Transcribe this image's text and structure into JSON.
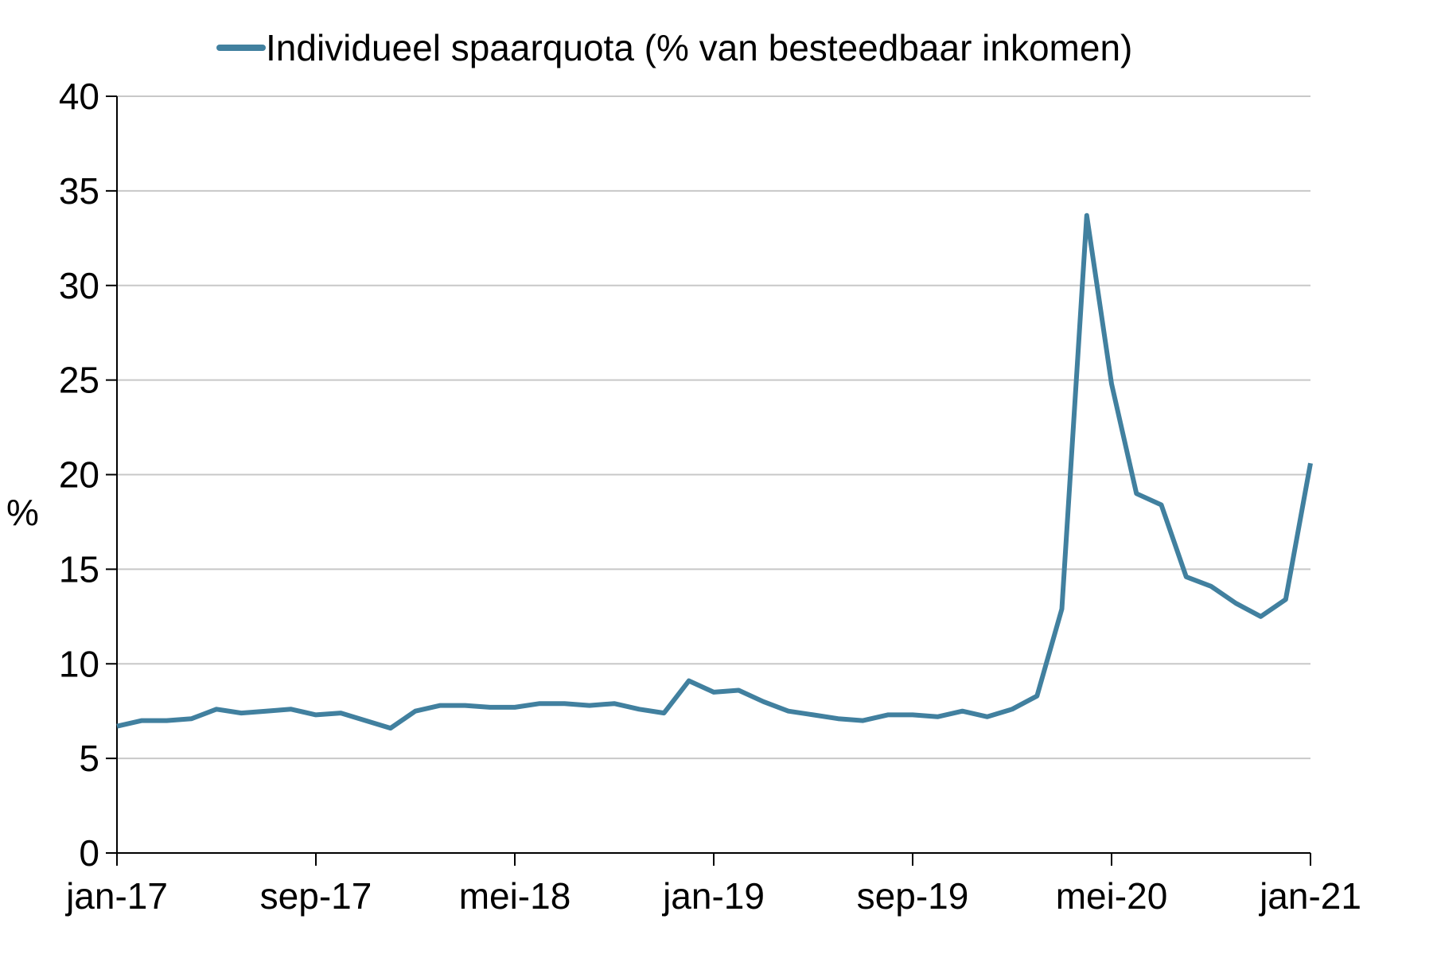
{
  "chart_data": {
    "type": "line",
    "ylabel": "%",
    "ylim": [
      0,
      40
    ],
    "y_ticks": [
      0,
      5,
      10,
      15,
      20,
      25,
      30,
      35,
      40
    ],
    "x_tick_labels": [
      "jan-17",
      "sep-17",
      "mei-18",
      "jan-19",
      "sep-19",
      "mei-20",
      "jan-21"
    ],
    "grid": "horizontal",
    "legend_position": "top",
    "series": [
      {
        "name": "Individueel spaarquota (% van besteedbaar inkomen)",
        "color": "#41809F",
        "x": [
          "jan-17",
          "feb-17",
          "mrt-17",
          "apr-17",
          "mei-17",
          "jun-17",
          "jul-17",
          "aug-17",
          "sep-17",
          "okt-17",
          "nov-17",
          "dec-17",
          "jan-18",
          "feb-18",
          "mrt-18",
          "apr-18",
          "mei-18",
          "jun-18",
          "jul-18",
          "aug-18",
          "sep-18",
          "okt-18",
          "nov-18",
          "dec-18",
          "jan-19",
          "feb-19",
          "mrt-19",
          "apr-19",
          "mei-19",
          "jun-19",
          "jul-19",
          "aug-19",
          "sep-19",
          "okt-19",
          "nov-19",
          "dec-19",
          "jan-20",
          "feb-20",
          "mrt-20",
          "apr-20",
          "mei-20",
          "jun-20",
          "jul-20",
          "aug-20",
          "sep-20",
          "okt-20",
          "nov-20",
          "dec-20",
          "jan-21"
        ],
        "values": [
          6.7,
          7.0,
          7.0,
          7.1,
          7.6,
          7.4,
          7.5,
          7.6,
          7.3,
          7.4,
          7.0,
          6.6,
          7.5,
          7.8,
          7.8,
          7.7,
          7.7,
          7.9,
          7.9,
          7.8,
          7.9,
          7.6,
          7.4,
          9.1,
          8.5,
          8.6,
          8.0,
          7.5,
          7.3,
          7.1,
          7.0,
          7.3,
          7.3,
          7.2,
          7.5,
          7.2,
          7.6,
          8.3,
          12.9,
          33.7,
          24.8,
          19.0,
          18.4,
          14.6,
          14.1,
          13.2,
          12.5,
          13.4,
          20.6
        ]
      }
    ]
  }
}
